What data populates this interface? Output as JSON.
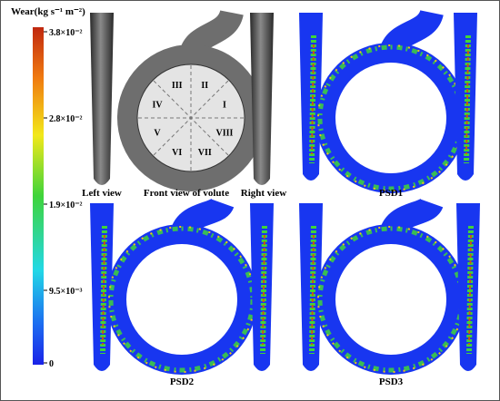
{
  "colorbar": {
    "title": "Wear(kg s⁻¹ m⁻²)",
    "ticks": [
      "3.8×10⁻²",
      "2.8×10⁻²",
      "1.9×10⁻²",
      "9.5×10⁻³",
      "0"
    ]
  },
  "views": {
    "left": "Left view",
    "front": "Front view of volute",
    "right": "Right view"
  },
  "sectors": [
    "I",
    "II",
    "III",
    "IV",
    "V",
    "VI",
    "VII",
    "VIII"
  ],
  "panels": [
    "PSD1",
    "PSD2",
    "PSD3"
  ]
}
